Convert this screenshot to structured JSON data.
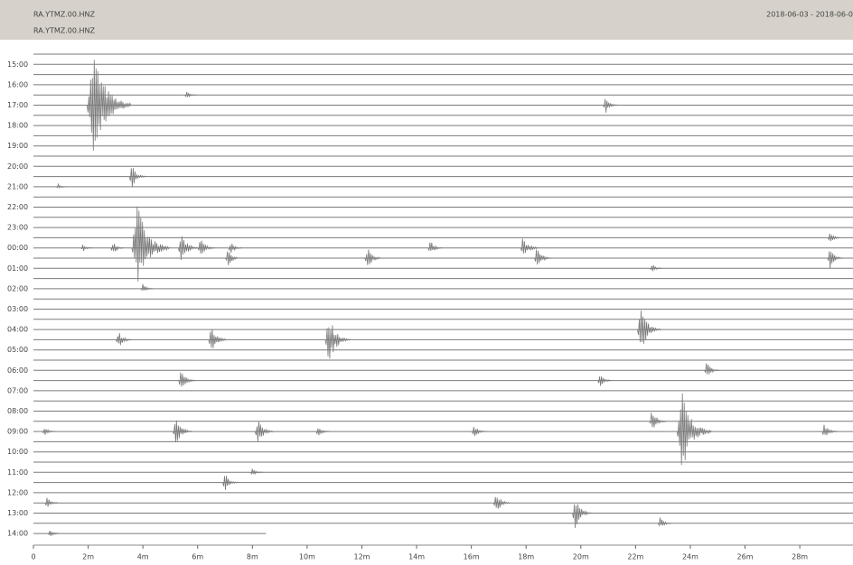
{
  "chart_data": {
    "type": "dayplot",
    "station": "RA.YTMZ.00.HNZ",
    "channel": "RA.YTMZ.00.HNZ",
    "date_range": "2018-06-03 - 2018-06-0",
    "color": "#7a7a7a",
    "categories": [
      null,
      "15:00",
      null,
      "16:00",
      null,
      "17:00",
      null,
      "18:00",
      null,
      "19:00",
      null,
      "20:00",
      null,
      "21:00",
      null,
      "22:00",
      null,
      "23:00",
      null,
      "00:00",
      null,
      "01:00",
      null,
      "02:00",
      null,
      "03:00",
      null,
      "04:00",
      null,
      "05:00",
      null,
      "06:00",
      null,
      "07:00",
      null,
      "08:00",
      null,
      "09:00",
      null,
      "10:00",
      null,
      "11:00",
      null,
      "12:00",
      null,
      "13:00",
      null,
      "14:00"
    ],
    "xlim": [
      0,
      30
    ],
    "xticks": [
      {
        "value": 0,
        "label": "0"
      },
      {
        "value": 2,
        "label": "2m"
      },
      {
        "value": 4,
        "label": "4m"
      },
      {
        "value": 6,
        "label": "6m"
      },
      {
        "value": 8,
        "label": "8m"
      },
      {
        "value": 10,
        "label": "10m"
      },
      {
        "value": 12,
        "label": "12m"
      },
      {
        "value": 14,
        "label": "14m"
      },
      {
        "value": 16,
        "label": "16m"
      },
      {
        "value": 18,
        "label": "18m"
      },
      {
        "value": 20,
        "label": "20m"
      },
      {
        "value": 22,
        "label": "22m"
      },
      {
        "value": 24,
        "label": "24m"
      },
      {
        "value": 26,
        "label": "26m"
      },
      {
        "value": 28,
        "label": "28m"
      }
    ],
    "last_trace_end": 8.5,
    "events": {
      "x": [
        2.2,
        20.9,
        5.6,
        0.9,
        3.6,
        3.8,
        5.4,
        6.1,
        7.1,
        1.8,
        2.9,
        17.9,
        29.1,
        12.2,
        18.4,
        7.2,
        29.1,
        4.0,
        10.8,
        22.2,
        3.1,
        6.5,
        24.6,
        5.4,
        20.7,
        0.4,
        5.2,
        8.2,
        10.4,
        16.1,
        23.7,
        28.9,
        22.6,
        8.0,
        7.0,
        0.5,
        19.8,
        22.9,
        0.6,
        16.9,
        14.5,
        22.6
      ],
      "rows": [
        5,
        5,
        4,
        13,
        12,
        19,
        19,
        19,
        20,
        19,
        19,
        19,
        18,
        20,
        20,
        19,
        20,
        23,
        28,
        27,
        28,
        28,
        31,
        32,
        32,
        37,
        37,
        37,
        37,
        37,
        37,
        37,
        36,
        41,
        42,
        44,
        45,
        46,
        47,
        44,
        19,
        21
      ],
      "amplitudes": [
        5.5,
        0.9,
        0.4,
        0.3,
        1.2,
        4.5,
        1.6,
        1.2,
        0.9,
        0.4,
        0.7,
        1.3,
        0.6,
        1.2,
        1.2,
        0.7,
        1.1,
        0.5,
        2.5,
        2.3,
        1.0,
        1.4,
        0.9,
        1.2,
        0.8,
        0.6,
        1.5,
        1.4,
        0.6,
        0.8,
        4.0,
        0.9,
        1.2,
        0.5,
        1.0,
        0.6,
        1.6,
        0.6,
        0.5,
        1.2,
        0.8,
        0.5
      ]
    }
  }
}
